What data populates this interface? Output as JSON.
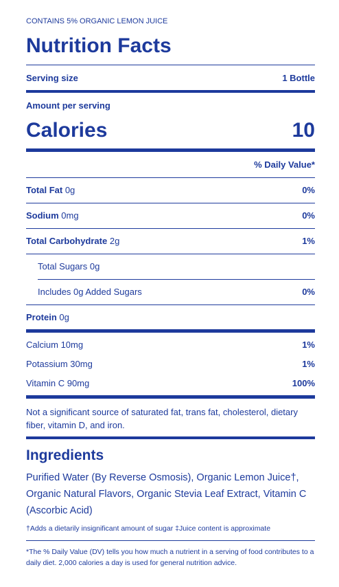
{
  "header": {
    "note": "CONTAINS 5% ORGANIC LEMON JUICE",
    "title": "Nutrition Facts"
  },
  "serving": {
    "label": "Serving size",
    "value": "1 Bottle"
  },
  "amount_per_serving": "Amount per serving",
  "calories": {
    "label": "Calories",
    "value": "10"
  },
  "daily_value_header": "% Daily Value*",
  "nutrients": [
    {
      "name": "Total Fat",
      "amount": "0g",
      "dv": "0%"
    },
    {
      "name": "Sodium",
      "amount": "0mg",
      "dv": "0%"
    },
    {
      "name": "Total Carbohydrate",
      "amount": "2g",
      "dv": "1%"
    },
    {
      "label": "Total Sugars 0g"
    },
    {
      "label": "Includes 0g Added Sugars",
      "dv": "0%"
    },
    {
      "name": "Protein",
      "amount": "0g"
    }
  ],
  "vitamins": [
    {
      "label": "Calcium 10mg",
      "dv": "1%"
    },
    {
      "label": "Potassium 30mg",
      "dv": "1%"
    },
    {
      "label": "Vitamin C 90mg",
      "dv": "100%"
    }
  ],
  "note": "Not a significant source of saturated fat, trans fat, cholesterol, dietary fiber, vitamin D, and iron.",
  "ingredients": {
    "title": "Ingredients",
    "text": "Purified Water (By Reverse Osmosis), Organic Lemon Juice†, Organic Natural Flavors, Organic Stevia Leaf Extract, Vitamin C (Ascorbic Acid)",
    "footnote": "†Adds a dietarily insignificant amount of sugar ‡Juice content is approximate"
  },
  "dv_footnote": "*The % Daily Value (DV) tells you how much a nutrient in a serving of food contributes to a daily diet. 2,000 calories a day is used for general nutrition advice."
}
